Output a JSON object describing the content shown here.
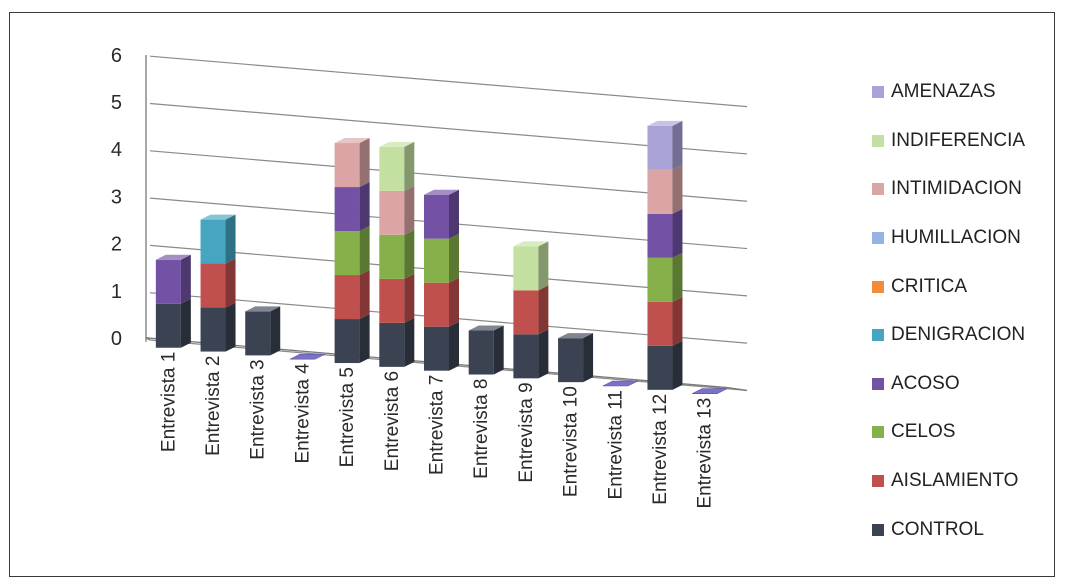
{
  "chart_data": {
    "type": "bar",
    "stacked": true,
    "three_d": true,
    "title": "",
    "xlabel": "",
    "ylabel": "",
    "ylim": [
      0,
      6
    ],
    "yticks": [
      "0",
      "1",
      "2",
      "3",
      "4",
      "5",
      "6"
    ],
    "grid": true,
    "legend_position": "right",
    "categories": [
      "Entrevista 1",
      "Entrevista 2",
      "Entrevista 3",
      "Entrevista 4",
      "Entrevista 5",
      "Entrevista 6",
      "Entrevista 7",
      "Entrevista 8",
      "Entrevista 9",
      "Entrevista 10",
      "Entrevista 11",
      "Entrevista 12",
      "Entrevista 13"
    ],
    "series": [
      {
        "name": "CONTROL",
        "color": "#3b4353",
        "values": [
          1,
          1,
          1,
          0,
          1,
          1,
          1,
          1,
          1,
          1,
          0,
          1,
          0
        ]
      },
      {
        "name": "AISLAMIENTO",
        "color": "#c0504d",
        "values": [
          0,
          1,
          0,
          0,
          1,
          1,
          1,
          0,
          1,
          0,
          0,
          1,
          0
        ]
      },
      {
        "name": "CELOS",
        "color": "#86b04a",
        "values": [
          0,
          0,
          0,
          0,
          1,
          1,
          1,
          0,
          0,
          0,
          0,
          1,
          0
        ]
      },
      {
        "name": "ACOSO",
        "color": "#7352a6",
        "values": [
          1,
          0,
          0,
          0,
          1,
          0,
          1,
          0,
          0,
          0,
          0,
          1,
          0
        ]
      },
      {
        "name": "DENIGRACION",
        "color": "#46a5c0",
        "values": [
          0,
          1,
          0,
          0,
          0,
          0,
          0,
          0,
          0,
          0,
          0,
          0,
          0
        ]
      },
      {
        "name": "CRITICA",
        "color": "#f08d3c",
        "values": [
          0,
          0,
          0,
          0,
          0,
          0,
          0,
          0,
          0,
          0,
          0,
          0,
          0
        ]
      },
      {
        "name": "HUMILLACION",
        "color": "#95b3e0",
        "values": [
          0,
          0,
          0,
          0,
          0,
          0,
          0,
          0,
          0,
          0,
          0,
          0,
          0
        ]
      },
      {
        "name": "INTIMIDACION",
        "color": "#dba5a5",
        "values": [
          0,
          0,
          0,
          0,
          1,
          1,
          0,
          0,
          0,
          0,
          0,
          1,
          0
        ]
      },
      {
        "name": "INDIFERENCIA",
        "color": "#c3e0a0",
        "values": [
          0,
          0,
          0,
          0,
          0,
          1,
          0,
          0,
          1,
          0,
          0,
          0,
          0
        ]
      },
      {
        "name": "AMENAZAS",
        "color": "#a9a2d6",
        "values": [
          0,
          0,
          0,
          0,
          0,
          0,
          0,
          0,
          0,
          0,
          0,
          1,
          0
        ]
      }
    ]
  }
}
